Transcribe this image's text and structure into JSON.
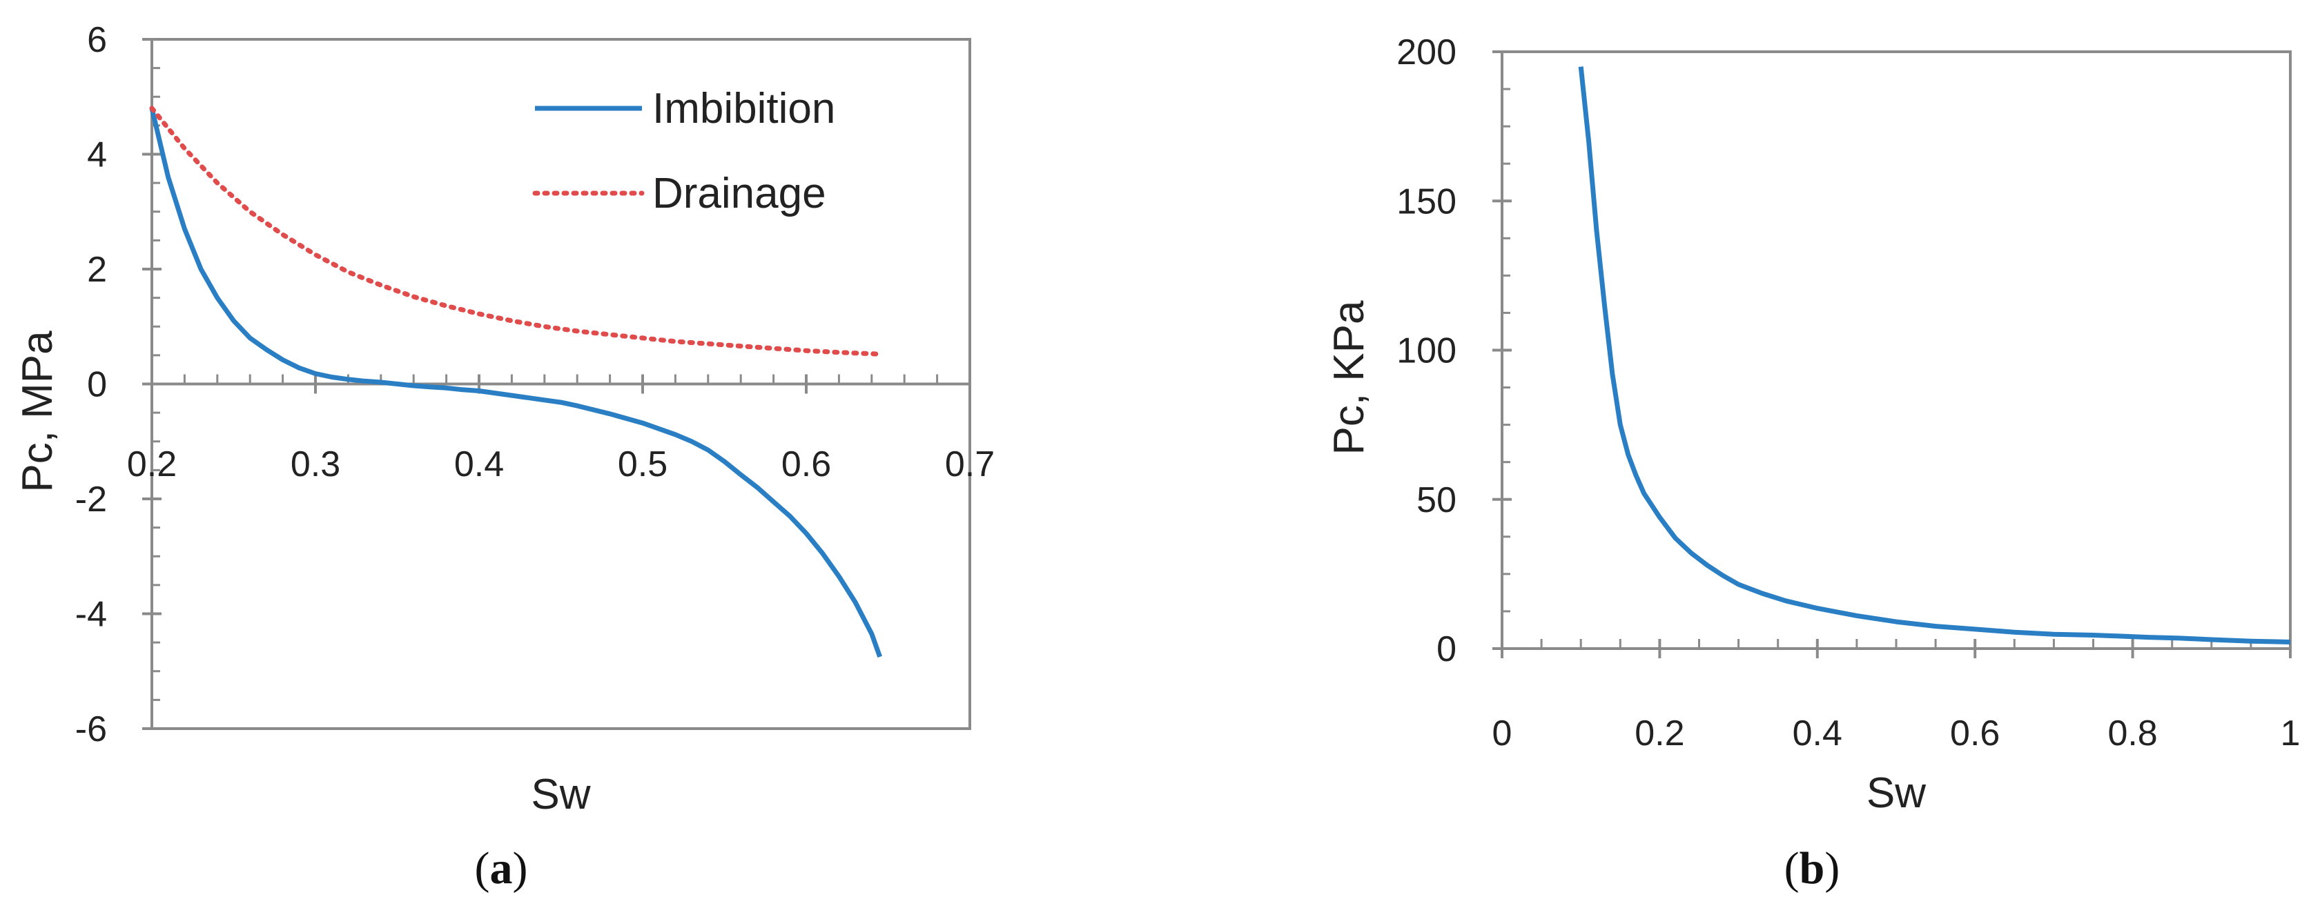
{
  "chart_data": [
    {
      "type": "line",
      "panel_label": {
        "open": "(",
        "letter": "a",
        "close": ")"
      },
      "xlabel": "Sw",
      "ylabel": "Pc, MPa",
      "xlim": [
        0.2,
        0.7
      ],
      "ylim": [
        -6,
        6
      ],
      "x_ticks": [
        0.2,
        0.3,
        0.4,
        0.5,
        0.6,
        0.7
      ],
      "x_tick_labels": [
        "0.2",
        "0.3",
        "0.4",
        "0.5",
        "0.6",
        "0.7"
      ],
      "y_ticks": [
        -6,
        -4,
        -2,
        0,
        2,
        4,
        6
      ],
      "y_tick_labels": [
        "-6",
        "-4",
        "-2",
        "0",
        "2",
        "4",
        "6"
      ],
      "grid": false,
      "legend_position": "top-right",
      "series": [
        {
          "name": "Imbibition",
          "color": "#2a7fc4",
          "style": "solid",
          "x": [
            0.2,
            0.21,
            0.22,
            0.23,
            0.24,
            0.25,
            0.26,
            0.27,
            0.28,
            0.29,
            0.3,
            0.31,
            0.32,
            0.33,
            0.34,
            0.35,
            0.36,
            0.37,
            0.38,
            0.39,
            0.4,
            0.42,
            0.44,
            0.45,
            0.46,
            0.48,
            0.5,
            0.52,
            0.53,
            0.54,
            0.55,
            0.56,
            0.57,
            0.58,
            0.59,
            0.6,
            0.61,
            0.62,
            0.63,
            0.64,
            0.645
          ],
          "y": [
            4.8,
            3.6,
            2.7,
            2.0,
            1.5,
            1.1,
            0.8,
            0.6,
            0.42,
            0.28,
            0.18,
            0.12,
            0.08,
            0.05,
            0.03,
            0.0,
            -0.03,
            -0.05,
            -0.07,
            -0.1,
            -0.12,
            -0.2,
            -0.28,
            -0.32,
            -0.38,
            -0.52,
            -0.68,
            -0.88,
            -1.0,
            -1.15,
            -1.35,
            -1.58,
            -1.8,
            -2.05,
            -2.3,
            -2.6,
            -2.95,
            -3.35,
            -3.8,
            -4.35,
            -4.75
          ]
        },
        {
          "name": "Drainage",
          "color": "#e04c4c",
          "style": "dotted",
          "x": [
            0.2,
            0.22,
            0.24,
            0.26,
            0.28,
            0.3,
            0.32,
            0.34,
            0.36,
            0.38,
            0.4,
            0.42,
            0.44,
            0.46,
            0.48,
            0.5,
            0.52,
            0.54,
            0.56,
            0.58,
            0.6,
            0.62,
            0.645
          ],
          "y": [
            4.8,
            4.1,
            3.5,
            3.0,
            2.6,
            2.25,
            1.95,
            1.72,
            1.52,
            1.36,
            1.22,
            1.1,
            1.0,
            0.92,
            0.86,
            0.8,
            0.74,
            0.7,
            0.66,
            0.62,
            0.58,
            0.55,
            0.52
          ]
        }
      ]
    },
    {
      "type": "line",
      "panel_label": {
        "open": "(",
        "letter": "b",
        "close": ")"
      },
      "xlabel": "Sw",
      "ylabel": "Pc, KPa",
      "xlim": [
        0,
        1
      ],
      "ylim": [
        0,
        200
      ],
      "x_ticks": [
        0,
        0.2,
        0.4,
        0.6,
        0.8,
        1
      ],
      "x_tick_labels": [
        "0",
        "0.2",
        "0.4",
        "0.6",
        "0.8",
        "1"
      ],
      "y_ticks": [
        0,
        50,
        100,
        150,
        200
      ],
      "y_tick_labels": [
        "0",
        "50",
        "100",
        "150",
        "200"
      ],
      "grid": false,
      "series": [
        {
          "name": "",
          "color": "#2a7fc4",
          "style": "solid",
          "x": [
            0.1,
            0.11,
            0.12,
            0.13,
            0.14,
            0.15,
            0.16,
            0.17,
            0.18,
            0.2,
            0.22,
            0.24,
            0.26,
            0.28,
            0.3,
            0.33,
            0.36,
            0.4,
            0.45,
            0.5,
            0.55,
            0.6,
            0.65,
            0.7,
            0.75,
            0.78,
            0.82,
            0.86,
            0.9,
            0.95,
            1.0
          ],
          "y": [
            195,
            170,
            140,
            115,
            92,
            75,
            65,
            58,
            52,
            44,
            37,
            32,
            28,
            24.5,
            21.5,
            18.5,
            16,
            13.5,
            11,
            9,
            7.5,
            6.5,
            5.5,
            4.8,
            4.5,
            4.2,
            3.8,
            3.5,
            3.0,
            2.5,
            2.2
          ]
        }
      ]
    }
  ]
}
